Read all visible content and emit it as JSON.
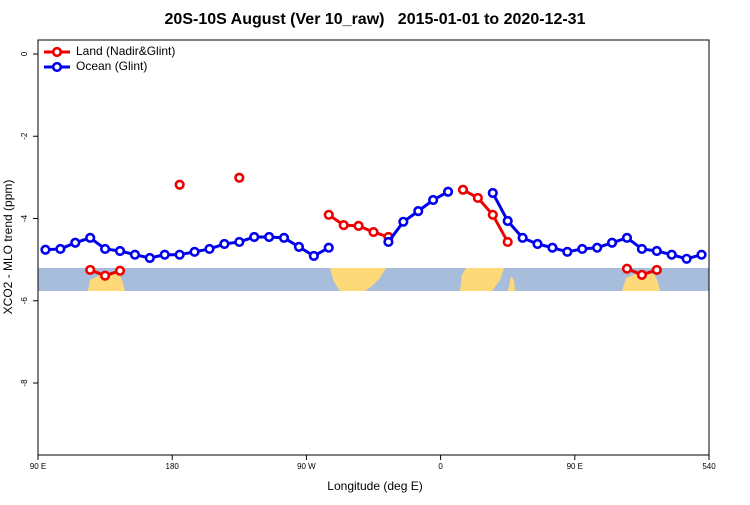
{
  "chart_data": {
    "type": "line",
    "title": "20S-10S August (Ver 10_raw)   2015-01-01 to 2020-12-31",
    "x_label": "Longitude (deg E)",
    "y_label": "XCO2 - MLO trend (ppm)",
    "x": [
      95,
      105,
      115,
      125,
      135,
      145,
      155,
      165,
      175,
      185,
      195,
      205,
      215,
      225,
      235,
      245,
      255,
      265,
      275,
      285,
      295,
      305,
      315,
      325,
      335,
      345,
      355,
      365,
      375,
      385,
      395,
      405,
      415,
      425,
      435,
      445,
      455,
      465,
      475,
      485,
      495,
      505,
      515,
      525,
      535
    ],
    "series": [
      {
        "name": "Land (Nadir&Glint)",
        "color": "#ee0000",
        "values": [
          null,
          null,
          null,
          -5.25,
          -5.39,
          -5.27,
          null,
          null,
          null,
          -3.18,
          null,
          null,
          null,
          -3.01,
          null,
          null,
          null,
          null,
          null,
          -3.91,
          -4.16,
          -4.18,
          -4.33,
          -4.45,
          null,
          null,
          null,
          null,
          -3.3,
          -3.5,
          -3.91,
          -4.57,
          null,
          null,
          null,
          null,
          null,
          null,
          null,
          -5.22,
          -5.37,
          -5.25,
          null,
          null,
          null
        ]
      },
      {
        "name": "Ocean (Glint)",
        "color": "#0000ee",
        "values": [
          -4.76,
          -4.74,
          -4.59,
          -4.47,
          -4.74,
          -4.79,
          -4.88,
          -4.96,
          -4.88,
          -4.88,
          -4.81,
          -4.74,
          -4.62,
          -4.57,
          -4.45,
          -4.45,
          -4.47,
          -4.69,
          -4.91,
          -4.71,
          null,
          null,
          null,
          -4.57,
          -4.08,
          -3.82,
          -3.55,
          -3.35,
          null,
          null,
          -3.38,
          -4.06,
          -4.47,
          -4.62,
          -4.71,
          -4.81,
          -4.74,
          -4.71,
          -4.59,
          -4.47,
          -4.74,
          -4.79,
          -4.88,
          -4.98,
          -4.88
        ]
      }
    ],
    "xlim": [
      90,
      540
    ],
    "xticks": [
      {
        "value": 90,
        "label": "90 E"
      },
      180,
      {
        "value": 270,
        "label": "90 W"
      },
      {
        "value": 360,
        "label": "0"
      },
      {
        "value": 450,
        "label": "90 E"
      },
      540
    ],
    "ylim": [
      -9.75,
      0.34
    ],
    "yticks": [
      0,
      -2,
      -4,
      -6,
      -8
    ],
    "legend": "top-left"
  }
}
